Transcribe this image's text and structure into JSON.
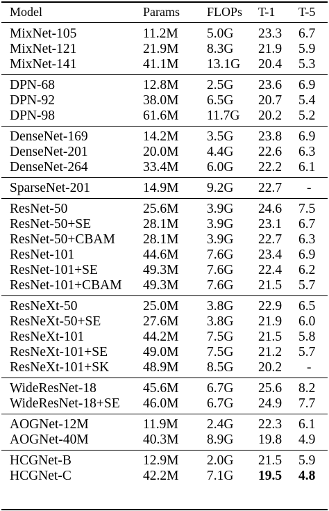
{
  "table": {
    "headers": {
      "model": "Model",
      "params": "Params",
      "flops": "FLOPs",
      "top1": "T-1",
      "top5": "T-5"
    },
    "groups": [
      {
        "rows": [
          {
            "model": "MixNet-105",
            "params": "11.2M",
            "flops": "5.0G",
            "top1": "23.3",
            "top5": "6.7"
          },
          {
            "model": "MixNet-121",
            "params": "21.9M",
            "flops": "8.3G",
            "top1": "21.9",
            "top5": "5.9"
          },
          {
            "model": "MixNet-141",
            "params": "41.1M",
            "flops": "13.1G",
            "top1": "20.4",
            "top5": "5.3"
          }
        ]
      },
      {
        "rows": [
          {
            "model": "DPN-68",
            "params": "12.8M",
            "flops": "2.5G",
            "top1": "23.6",
            "top5": "6.9"
          },
          {
            "model": "DPN-92",
            "params": "38.0M",
            "flops": "6.5G",
            "top1": "20.7",
            "top5": "5.4"
          },
          {
            "model": "DPN-98",
            "params": "61.6M",
            "flops": "11.7G",
            "top1": "20.2",
            "top5": "5.2"
          }
        ]
      },
      {
        "rows": [
          {
            "model": "DenseNet-169",
            "params": "14.2M",
            "flops": "3.5G",
            "top1": "23.8",
            "top5": "6.9"
          },
          {
            "model": "DenseNet-201",
            "params": "20.0M",
            "flops": "4.4G",
            "top1": "22.6",
            "top5": "6.3"
          },
          {
            "model": "DenseNet-264",
            "params": "33.4M",
            "flops": "6.0G",
            "top1": "22.2",
            "top5": "6.1"
          }
        ]
      },
      {
        "rows": [
          {
            "model": "SparseNet-201",
            "params": "14.9M",
            "flops": "9.2G",
            "top1": "22.7",
            "top5": "-"
          }
        ]
      },
      {
        "rows": [
          {
            "model": "ResNet-50",
            "params": "25.6M",
            "flops": "3.9G",
            "top1": "24.6",
            "top5": "7.5"
          },
          {
            "model": "ResNet-50+SE",
            "params": "28.1M",
            "flops": "3.9G",
            "top1": "23.1",
            "top5": "6.7"
          },
          {
            "model": "ResNet-50+CBAM",
            "params": "28.1M",
            "flops": "3.9G",
            "top1": "22.7",
            "top5": "6.3"
          },
          {
            "model": "ResNet-101",
            "params": "44.6M",
            "flops": "7.6G",
            "top1": "23.4",
            "top5": "6.9"
          },
          {
            "model": "ResNet-101+SE",
            "params": "49.3M",
            "flops": "7.6G",
            "top1": "22.4",
            "top5": "6.2"
          },
          {
            "model": "ResNet-101+CBAM",
            "params": "49.3M",
            "flops": "7.6G",
            "top1": "21.5",
            "top5": "5.7"
          }
        ]
      },
      {
        "rows": [
          {
            "model": "ResNeXt-50",
            "params": "25.0M",
            "flops": "3.8G",
            "top1": "22.9",
            "top5": "6.5"
          },
          {
            "model": "ResNeXt-50+SE",
            "params": "27.6M",
            "flops": "3.8G",
            "top1": "21.9",
            "top5": "6.0"
          },
          {
            "model": "ResNeXt-101",
            "params": "44.2M",
            "flops": "7.5G",
            "top1": "21.5",
            "top5": "5.8"
          },
          {
            "model": "ResNeXt-101+SE",
            "params": "49.0M",
            "flops": "7.5G",
            "top1": "21.2",
            "top5": "5.7"
          },
          {
            "model": "ResNeXt-101+SK",
            "params": "48.9M",
            "flops": "8.5G",
            "top1": "20.2",
            "top5": "-"
          }
        ]
      },
      {
        "rows": [
          {
            "model": "WideResNet-18",
            "params": "45.6M",
            "flops": "6.7G",
            "top1": "25.6",
            "top5": "8.2"
          },
          {
            "model": "WideResNet-18+SE",
            "params": "46.0M",
            "flops": "6.7G",
            "top1": "24.9",
            "top5": "7.7"
          }
        ]
      },
      {
        "rows": [
          {
            "model": "AOGNet-12M",
            "params": "11.9M",
            "flops": "2.4G",
            "top1": "22.3",
            "top5": "6.1"
          },
          {
            "model": "AOGNet-40M",
            "params": "40.3M",
            "flops": "8.9G",
            "top1": "19.8",
            "top5": "4.9"
          }
        ]
      },
      {
        "rows": [
          {
            "model": "HCGNet-B",
            "params": "12.9M",
            "flops": "2.0G",
            "top1": "21.5",
            "top5": "5.9"
          },
          {
            "model": "HCGNet-C",
            "params": "42.2M",
            "flops": "7.1G",
            "top1": "19.5",
            "top5": "4.8",
            "bold_metrics": true
          }
        ]
      }
    ]
  }
}
